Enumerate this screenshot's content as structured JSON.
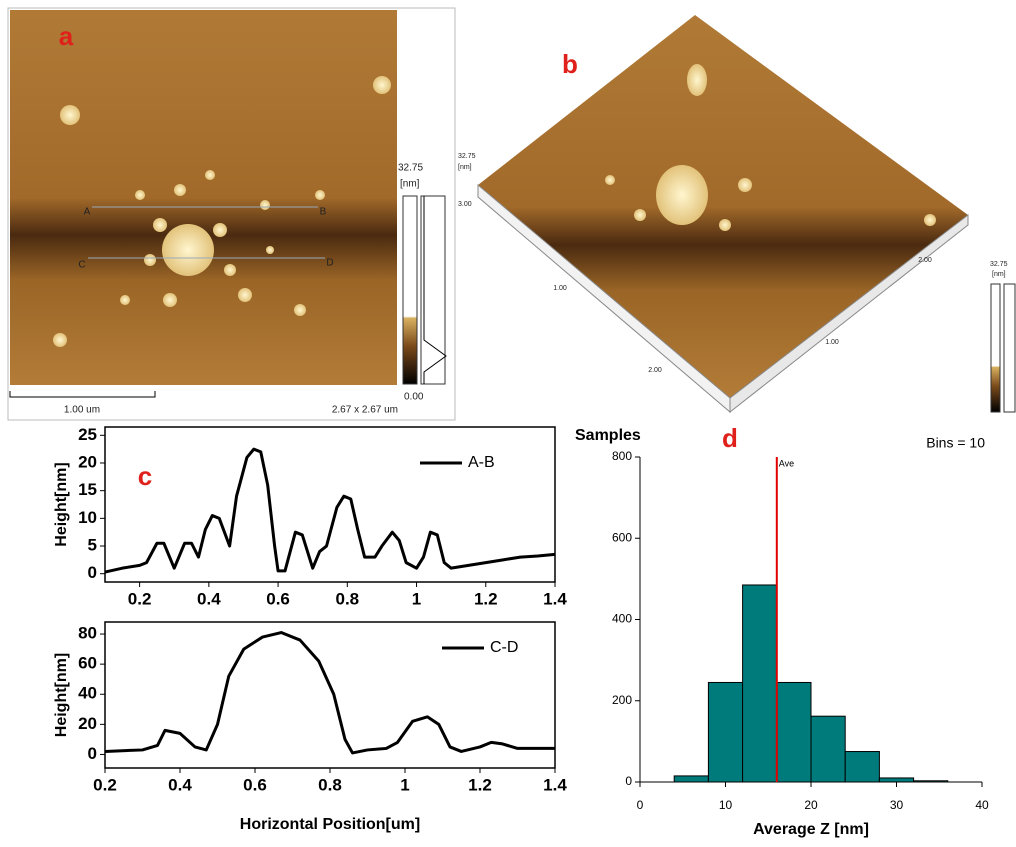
{
  "panel_a": {
    "label": "a",
    "scale_max": "32.75",
    "unit": "[nm]",
    "scale_min": "0.00",
    "scale_bar": "1.00 um",
    "size": "2.67 x 2.67 um",
    "markers": [
      "A",
      "B",
      "C",
      "D"
    ]
  },
  "panel_b": {
    "label": "b",
    "z_max": "32.75",
    "z_unit": "[nm]",
    "z_tick": "3.00",
    "axis_ticks": [
      "1.00",
      "2.00",
      "1.00",
      "2.00"
    ],
    "colorbar_max": "32.75",
    "colorbar_unit": "[nm]"
  },
  "chart_data": [
    {
      "type": "line",
      "panel_label": "c",
      "ylabel": "Height[nm]",
      "x": [
        0.1,
        0.15,
        0.2,
        0.22,
        0.25,
        0.27,
        0.3,
        0.33,
        0.35,
        0.37,
        0.39,
        0.41,
        0.43,
        0.46,
        0.48,
        0.51,
        0.53,
        0.55,
        0.57,
        0.59,
        0.6,
        0.62,
        0.65,
        0.67,
        0.7,
        0.72,
        0.74,
        0.77,
        0.79,
        0.81,
        0.83,
        0.85,
        0.88,
        0.9,
        0.93,
        0.95,
        0.97,
        1.0,
        1.02,
        1.04,
        1.06,
        1.08,
        1.1,
        1.15,
        1.2,
        1.25,
        1.3,
        1.35,
        1.4
      ],
      "series": [
        {
          "name": "A-B",
          "color": "#000000",
          "values": [
            0.3,
            1,
            1.5,
            2,
            5.5,
            5.5,
            1,
            5.5,
            5.5,
            3,
            8,
            10.5,
            10,
            5,
            14,
            21,
            22.5,
            22,
            16,
            5,
            0.5,
            0.5,
            7.5,
            7,
            1,
            4,
            5,
            12,
            14,
            13.5,
            8,
            3,
            3,
            5,
            7.5,
            6,
            2,
            1,
            3,
            7.5,
            7,
            2,
            1,
            1.5,
            2,
            2.5,
            3,
            3.2,
            3.5
          ]
        }
      ],
      "xlim": [
        0.1,
        1.4
      ],
      "ylim": [
        -1.5,
        26.5
      ],
      "xticks": [
        0.2,
        0.4,
        0.6,
        0.8,
        1.0,
        1.2,
        1.4
      ],
      "yticks": [
        0,
        5,
        10,
        15,
        20,
        25
      ]
    },
    {
      "type": "line",
      "ylabel": "Height[nm]",
      "xlabel": "Horizontal Position[um]",
      "x": [
        0.2,
        0.3,
        0.34,
        0.36,
        0.4,
        0.44,
        0.47,
        0.5,
        0.53,
        0.57,
        0.62,
        0.67,
        0.72,
        0.77,
        0.81,
        0.84,
        0.86,
        0.9,
        0.95,
        0.98,
        1.02,
        1.06,
        1.09,
        1.12,
        1.15,
        1.2,
        1.23,
        1.26,
        1.3,
        1.4
      ],
      "series": [
        {
          "name": "C-D",
          "color": "#000000",
          "values": [
            2,
            3,
            6,
            16,
            14,
            5,
            3,
            20,
            52,
            70,
            78,
            81,
            76,
            62,
            40,
            10,
            1,
            3,
            4,
            8,
            22,
            25,
            20,
            5,
            2,
            5,
            8,
            7,
            4,
            4
          ]
        }
      ],
      "xlim": [
        0.2,
        1.4
      ],
      "ylim": [
        -9,
        88
      ],
      "xticks": [
        0.2,
        0.4,
        0.6,
        0.8,
        1.0,
        1.2,
        1.4
      ],
      "yticks": [
        0,
        20,
        40,
        60,
        80
      ]
    },
    {
      "type": "histogram",
      "panel_label": "d",
      "ylabel": "Samples",
      "xlabel": "Average Z [nm]",
      "annotation": "Bins = 10",
      "bins": [
        0,
        4,
        8,
        12,
        16,
        20,
        24,
        28,
        32,
        36,
        40
      ],
      "values": [
        0,
        15,
        245,
        485,
        245,
        162,
        75,
        10,
        3,
        0
      ],
      "color": "#007b7b",
      "mean": {
        "value": 16,
        "label": "Ave",
        "color": "#e00000"
      },
      "xlim": [
        0,
        40
      ],
      "ylim": [
        0,
        800
      ],
      "xticks": [
        0,
        10,
        20,
        30,
        40
      ],
      "yticks": [
        0,
        200,
        400,
        600,
        800
      ]
    }
  ]
}
